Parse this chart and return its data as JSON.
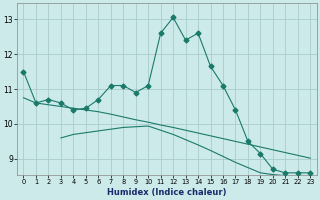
{
  "xlabel": "Humidex (Indice chaleur)",
  "background_color": "#cceaea",
  "grid_color": "#aacccc",
  "line_color": "#1a7a6a",
  "x_ticks": [
    0,
    1,
    2,
    3,
    4,
    5,
    6,
    7,
    8,
    9,
    10,
    11,
    12,
    13,
    14,
    15,
    16,
    17,
    18,
    19,
    20,
    21,
    22,
    23
  ],
  "y_ticks": [
    9,
    10,
    11,
    12,
    13
  ],
  "ylim": [
    8.55,
    13.45
  ],
  "xlim": [
    -0.5,
    23.5
  ],
  "line1_x": [
    0,
    1,
    2,
    3,
    4,
    5,
    6,
    7,
    8,
    9,
    10,
    11,
    12,
    13,
    14,
    15,
    16,
    17,
    18,
    19,
    20,
    21,
    22,
    23
  ],
  "line1_y": [
    11.5,
    10.6,
    10.7,
    10.6,
    10.4,
    10.45,
    10.7,
    11.1,
    11.1,
    10.9,
    11.1,
    12.6,
    13.05,
    12.4,
    12.6,
    11.65,
    11.1,
    10.4,
    9.5,
    9.15,
    8.7,
    8.6,
    8.6,
    8.6
  ],
  "line2_x": [
    0,
    1,
    2,
    3,
    4,
    5,
    6,
    7,
    8,
    9,
    10,
    11,
    12,
    13,
    14,
    15,
    16,
    17,
    18,
    19,
    20,
    21,
    22,
    23
  ],
  "line2_y": [
    10.75,
    10.6,
    10.55,
    10.5,
    10.45,
    10.4,
    10.35,
    10.28,
    10.2,
    10.12,
    10.05,
    9.97,
    9.9,
    9.82,
    9.74,
    9.66,
    9.58,
    9.5,
    9.42,
    9.34,
    9.26,
    9.18,
    9.1,
    9.02
  ],
  "line3_x": [
    3,
    4,
    5,
    6,
    7,
    8,
    9,
    10,
    11,
    12,
    13,
    14,
    15,
    16,
    17,
    18,
    19,
    20,
    21,
    22,
    23
  ],
  "line3_y": [
    9.6,
    9.7,
    9.75,
    9.8,
    9.85,
    9.9,
    9.92,
    9.94,
    9.82,
    9.7,
    9.55,
    9.4,
    9.24,
    9.07,
    8.9,
    8.75,
    8.6,
    8.55,
    8.52,
    8.5,
    8.48
  ]
}
